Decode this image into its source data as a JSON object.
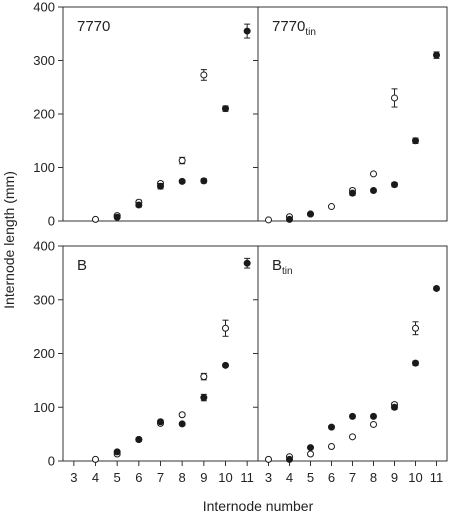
{
  "figure": {
    "ylabel": "Internode length (mm)",
    "xlabel": "Internode number"
  },
  "chart_data": [
    {
      "type": "scatter",
      "panel_label": "7770",
      "panel_label_sub": "",
      "xlim": [
        2.5,
        11.5
      ],
      "ylim": [
        0,
        400
      ],
      "x_ticks": [
        3,
        4,
        5,
        6,
        7,
        8,
        9,
        10,
        11
      ],
      "y_ticks": [
        0,
        100,
        200,
        300,
        400
      ],
      "grid": false,
      "series": [
        {
          "marker": "open-circle",
          "x": [
            4,
            5,
            6,
            7,
            8,
            9
          ],
          "y": [
            3,
            10,
            35,
            70,
            113,
            273
          ],
          "err": [
            0,
            3,
            4,
            4,
            6,
            10
          ]
        },
        {
          "marker": "filled-circle",
          "x": [
            5,
            6,
            7,
            8,
            9,
            10,
            11
          ],
          "y": [
            7,
            30,
            65,
            74,
            75,
            210,
            355
          ],
          "err": [
            2,
            4,
            5,
            3,
            4,
            5,
            13
          ]
        }
      ]
    },
    {
      "type": "scatter",
      "panel_label": "7770",
      "panel_label_sub": "tin",
      "xlim": [
        2.5,
        11.5
      ],
      "ylim": [
        0,
        400
      ],
      "x_ticks": [
        3,
        4,
        5,
        6,
        7,
        8,
        9,
        10,
        11
      ],
      "y_ticks": [
        0,
        100,
        200,
        300,
        400
      ],
      "grid": false,
      "series": [
        {
          "marker": "open-circle",
          "x": [
            3,
            4,
            5,
            6,
            7,
            8,
            9
          ],
          "y": [
            2,
            8,
            13,
            27,
            57,
            88,
            230
          ],
          "err": [
            0,
            2,
            2,
            2,
            4,
            3,
            17
          ]
        },
        {
          "marker": "filled-circle",
          "x": [
            4,
            5,
            7,
            8,
            9,
            10,
            11
          ],
          "y": [
            3,
            13,
            52,
            57,
            68,
            150,
            310
          ],
          "err": [
            1,
            2,
            4,
            3,
            4,
            5,
            6
          ]
        }
      ]
    },
    {
      "type": "scatter",
      "panel_label": "B",
      "panel_label_sub": "",
      "xlim": [
        2.5,
        11.5
      ],
      "ylim": [
        0,
        400
      ],
      "x_ticks": [
        3,
        4,
        5,
        6,
        7,
        8,
        9,
        10,
        11
      ],
      "y_ticks": [
        0,
        100,
        200,
        300,
        400
      ],
      "grid": false,
      "series": [
        {
          "marker": "open-circle",
          "x": [
            4,
            5,
            6,
            7,
            8,
            9,
            10
          ],
          "y": [
            3,
            13,
            40,
            70,
            86,
            157,
            247
          ],
          "err": [
            0,
            3,
            3,
            3,
            3,
            6,
            15
          ]
        },
        {
          "marker": "filled-circle",
          "x": [
            5,
            6,
            7,
            8,
            9,
            10,
            11
          ],
          "y": [
            17,
            40,
            73,
            69,
            118,
            178,
            368
          ],
          "err": [
            2,
            3,
            3,
            3,
            6,
            3,
            9
          ]
        }
      ]
    },
    {
      "type": "scatter",
      "panel_label": "B",
      "panel_label_sub": "tin",
      "xlim": [
        2.5,
        11.5
      ],
      "ylim": [
        0,
        400
      ],
      "x_ticks": [
        3,
        4,
        5,
        6,
        7,
        8,
        9,
        10,
        11
      ],
      "y_ticks": [
        0,
        100,
        200,
        300,
        400
      ],
      "grid": false,
      "series": [
        {
          "marker": "open-circle",
          "x": [
            3,
            4,
            5,
            6,
            7,
            8,
            9,
            10
          ],
          "y": [
            3,
            8,
            13,
            27,
            45,
            68,
            105,
            247
          ],
          "err": [
            0,
            2,
            2,
            2,
            3,
            3,
            4,
            12
          ]
        },
        {
          "marker": "filled-circle",
          "x": [
            4,
            5,
            6,
            7,
            8,
            9,
            10,
            11
          ],
          "y": [
            3,
            25,
            63,
            83,
            83,
            100,
            182,
            321
          ],
          "err": [
            1,
            2,
            3,
            3,
            3,
            4,
            4,
            3
          ]
        }
      ]
    }
  ]
}
